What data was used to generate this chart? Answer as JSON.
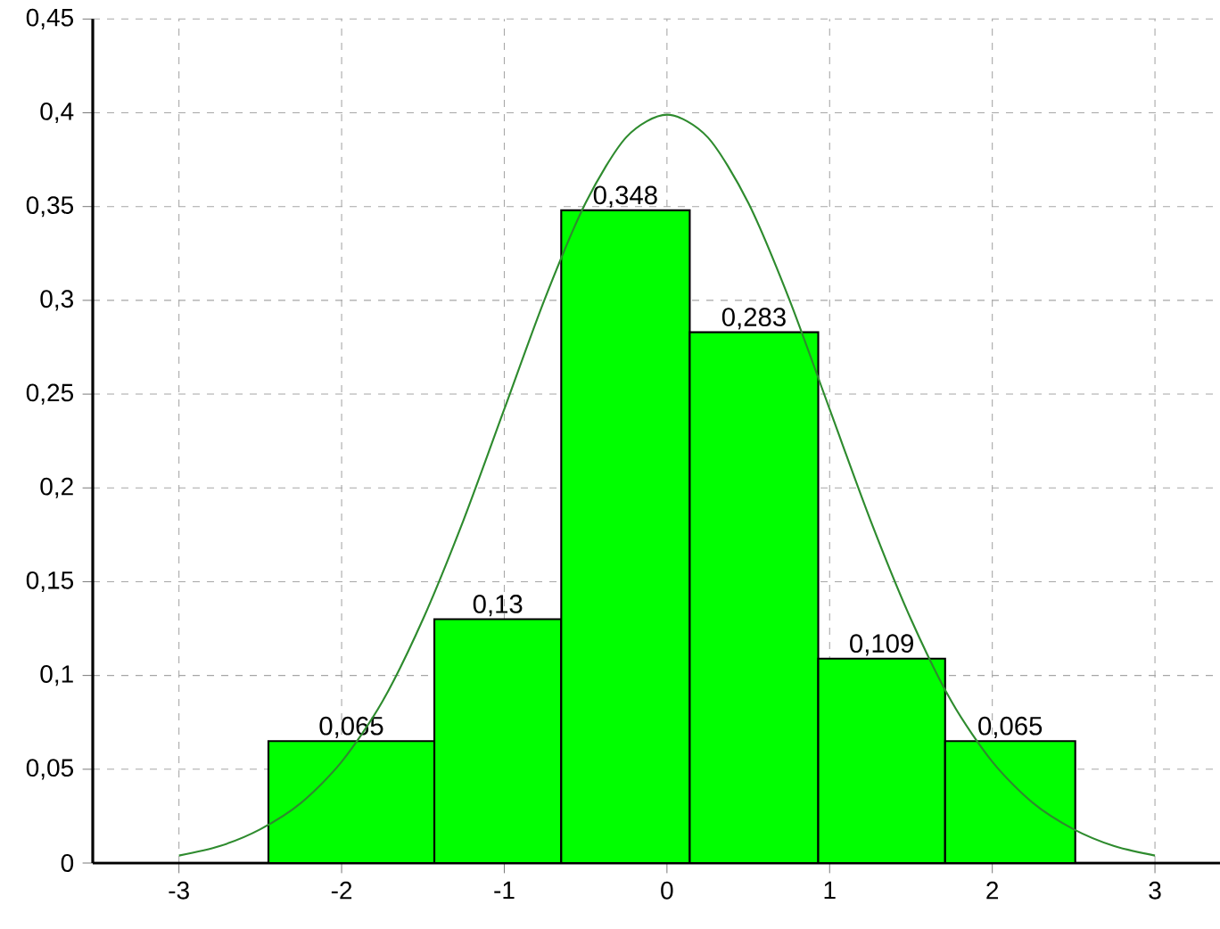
{
  "chart_data": {
    "type": "histogram",
    "bins": [
      -2.45,
      -1.43,
      -0.65,
      0.14,
      0.93,
      1.71,
      2.51
    ],
    "values": [
      0.065,
      0.13,
      0.348,
      0.283,
      0.109,
      0.065
    ],
    "value_labels": [
      "0,065",
      "0,13",
      "0,348",
      "0,283",
      "0,109",
      "0,065"
    ],
    "color": "#00ff00",
    "series": [
      {
        "type": "line",
        "color": "#2e8b2e",
        "x": [
          -3,
          -2.75,
          -2.5,
          -2.25,
          -2,
          -1.75,
          -1.5,
          -1.25,
          -1,
          -0.75,
          -0.5,
          -0.25,
          0,
          0.25,
          0.5,
          0.75,
          1,
          1.25,
          1.5,
          1.75,
          2,
          2.25,
          2.5,
          2.75,
          3
        ],
        "values": [
          0.004,
          0.009,
          0.018,
          0.032,
          0.054,
          0.086,
          0.13,
          0.183,
          0.242,
          0.301,
          0.352,
          0.387,
          0.399,
          0.387,
          0.352,
          0.301,
          0.242,
          0.183,
          0.13,
          0.086,
          0.054,
          0.032,
          0.018,
          0.009,
          0.004
        ]
      }
    ],
    "xlim": [
      -3.53,
      3.4
    ],
    "ylim": [
      0,
      0.45
    ],
    "xticks": [
      -3,
      -2,
      -1,
      0,
      1,
      2,
      3
    ],
    "yticks": [
      0,
      {
        "value": 0.05,
        "label": "0,05"
      },
      {
        "value": 0.1,
        "label": "0,1"
      },
      {
        "value": 0.15,
        "label": "0,15"
      },
      {
        "value": 0.2,
        "label": "0,2"
      },
      {
        "value": 0.25,
        "label": "0,25"
      },
      {
        "value": 0.3,
        "label": "0,3"
      },
      {
        "value": 0.35,
        "label": "0,35"
      },
      {
        "value": 0.4,
        "label": "0,4"
      },
      {
        "value": 0.45,
        "label": "0,45"
      }
    ],
    "grid": true,
    "marker": "none",
    "line_style": "solid"
  }
}
